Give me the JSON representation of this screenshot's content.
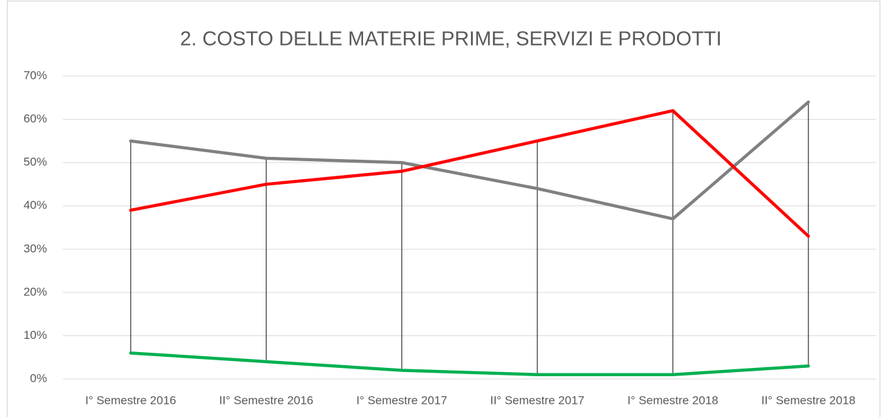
{
  "chart_data": {
    "type": "line",
    "title": "2. COSTO DELLE MATERIE PRIME, SERVIZI E PRODOTTI",
    "categories": [
      "I° Semestre 2016",
      "II° Semestre 2016",
      "I° Semestre 2017",
      "II° Semestre 2017",
      "I° Semestre 2018",
      "II° Semestre 2018"
    ],
    "series": [
      {
        "color": "#808080",
        "values": [
          55,
          51,
          50,
          44,
          37,
          64
        ]
      },
      {
        "color": "#ff0000",
        "values": [
          39,
          45,
          48,
          55,
          62,
          33
        ]
      },
      {
        "color": "#00b050",
        "values": [
          6,
          4,
          2,
          1,
          1,
          3
        ]
      }
    ],
    "ylim": [
      0,
      70
    ],
    "yticks": [
      {
        "value": 0,
        "label": "0%"
      },
      {
        "value": 10,
        "label": "10%"
      },
      {
        "value": 20,
        "label": "20%"
      },
      {
        "value": 30,
        "label": "30%"
      },
      {
        "value": 40,
        "label": "40%"
      },
      {
        "value": 50,
        "label": "50%"
      },
      {
        "value": 60,
        "label": "60%"
      },
      {
        "value": 70,
        "label": "70%"
      }
    ],
    "grid": true,
    "high_low_lines": true
  }
}
